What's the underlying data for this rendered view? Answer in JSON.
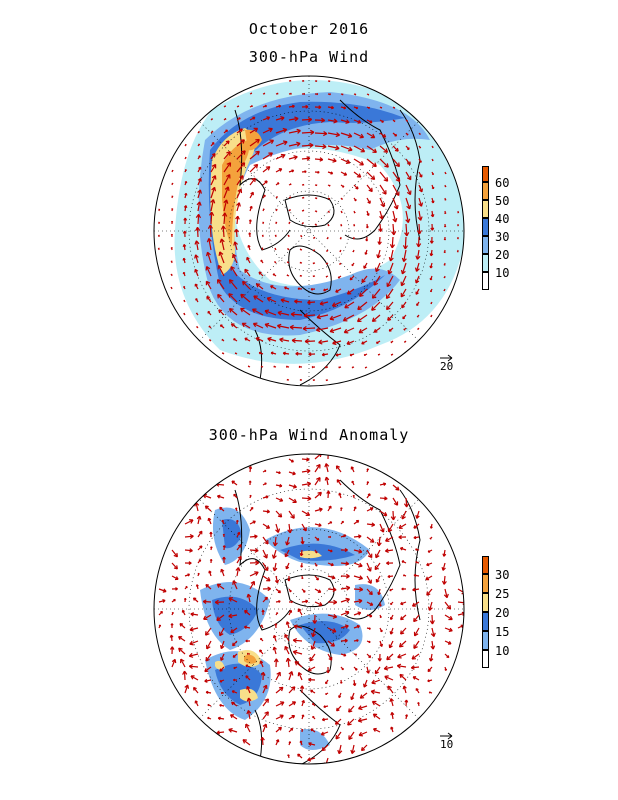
{
  "titles": {
    "main": "October 2016",
    "top_panel": "300-hPa Wind",
    "bottom_panel": "300-hPa Wind Anomaly"
  },
  "top_panel": {
    "colorbar": {
      "labels": [
        "60",
        "50",
        "40",
        "30",
        "20",
        "10"
      ],
      "colors": [
        "#e65a00",
        "#f4a23c",
        "#f8df8a",
        "#3a78d8",
        "#7fb4ee",
        "#bdeef6",
        "#ffffff"
      ]
    },
    "reference_vector": "20"
  },
  "bottom_panel": {
    "colorbar": {
      "labels": [
        "30",
        "25",
        "20",
        "15",
        "10"
      ],
      "colors": [
        "#e65a00",
        "#f4a23c",
        "#f8df8a",
        "#3a78d8",
        "#7fb4ee",
        "#ffffff"
      ]
    },
    "reference_vector": "10"
  },
  "colors": {
    "vector": "#c00000",
    "coast": "#000000"
  }
}
